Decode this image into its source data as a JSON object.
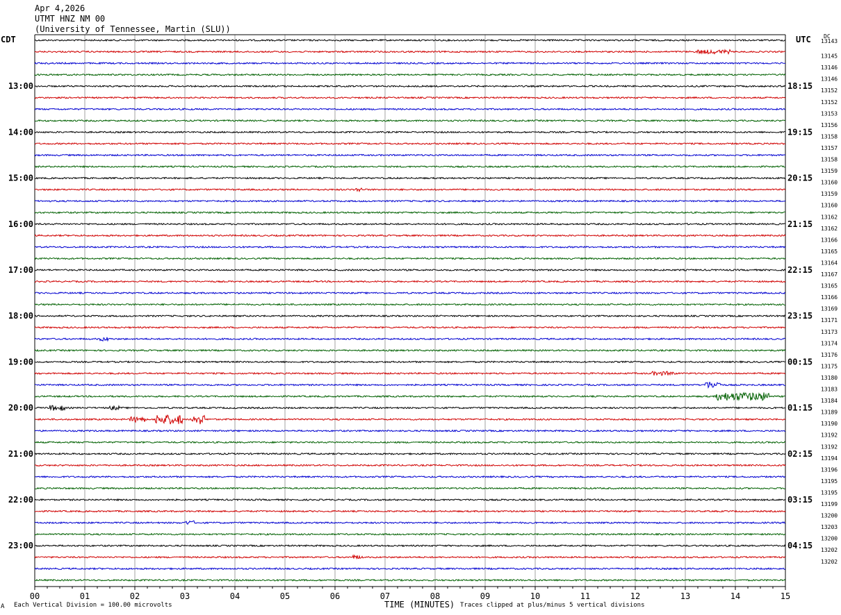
{
  "header": {
    "date": "Apr 4,2026",
    "station": "UTMT HNZ NM 00",
    "network": "(University of Tennessee, Martin (SLU))"
  },
  "left_tz": "CDT",
  "right_tz": "UTC",
  "dc_label": "DC",
  "footer": {
    "left": "Each Vertical Division =  100.00 microvolts",
    "mark": "A",
    "center": "TIME (MINUTES)",
    "right": "Traces clipped at plus/minus 5 vertical divisions"
  },
  "colors": {
    "trace_cycle": [
      "#000000",
      "#d00000",
      "#0000d0",
      "#006000"
    ],
    "grid": "#a0a0a0"
  },
  "chart_data": {
    "type": "line",
    "title": "",
    "xlabel": "TIME (MINUTES)",
    "xlim": [
      0,
      15
    ],
    "x_ticks": [
      "00",
      "01",
      "02",
      "03",
      "04",
      "05",
      "06",
      "07",
      "08",
      "09",
      "10",
      "11",
      "12",
      "13",
      "14",
      "15"
    ],
    "trace_count": 48,
    "left_hour_labels": [
      {
        "row": 4,
        "label": "13:00"
      },
      {
        "row": 8,
        "label": "14:00"
      },
      {
        "row": 12,
        "label": "15:00"
      },
      {
        "row": 16,
        "label": "16:00"
      },
      {
        "row": 20,
        "label": "17:00"
      },
      {
        "row": 24,
        "label": "18:00"
      },
      {
        "row": 28,
        "label": "19:00"
      },
      {
        "row": 32,
        "label": "20:00"
      },
      {
        "row": 36,
        "label": "21:00"
      },
      {
        "row": 40,
        "label": "22:00"
      },
      {
        "row": 44,
        "label": "23:00"
      }
    ],
    "right_hour_labels": [
      {
        "row": 4,
        "label": "18:15"
      },
      {
        "row": 8,
        "label": "19:15"
      },
      {
        "row": 12,
        "label": "20:15"
      },
      {
        "row": 16,
        "label": "21:15"
      },
      {
        "row": 20,
        "label": "22:15"
      },
      {
        "row": 24,
        "label": "23:15"
      },
      {
        "row": 28,
        "label": "00:15"
      },
      {
        "row": 32,
        "label": "01:15"
      },
      {
        "row": 36,
        "label": "02:15"
      },
      {
        "row": 40,
        "label": "03:15"
      },
      {
        "row": 44,
        "label": "04:15"
      }
    ],
    "dc_offsets": [
      "13143",
      "13145",
      "13146",
      "13146",
      "13152",
      "13152",
      "13153",
      "13156",
      "13158",
      "13157",
      "13158",
      "13159",
      "13160",
      "13159",
      "13160",
      "13162",
      "13162",
      "13166",
      "13165",
      "13164",
      "13167",
      "13165",
      "13166",
      "13169",
      "13171",
      "13173",
      "13174",
      "13176",
      "13175",
      "13180",
      "13183",
      "13184",
      "13189",
      "13190",
      "13192",
      "13192",
      "13194",
      "13196",
      "13195",
      "13195",
      "13199",
      "13200",
      "13203",
      "13200",
      "13202",
      "13202"
    ],
    "events": [
      {
        "row": 1,
        "start_min": 13.2,
        "end_min": 13.9,
        "amp": 3
      },
      {
        "row": 29,
        "start_min": 12.3,
        "end_min": 12.8,
        "amp": 3
      },
      {
        "row": 30,
        "start_min": 13.4,
        "end_min": 13.7,
        "amp": 5
      },
      {
        "row": 31,
        "start_min": 13.6,
        "end_min": 14.7,
        "amp": 6
      },
      {
        "row": 32,
        "start_min": 0.3,
        "end_min": 0.6,
        "amp": 4
      },
      {
        "row": 32,
        "start_min": 1.5,
        "end_min": 1.7,
        "amp": 3
      },
      {
        "row": 33,
        "start_min": 1.9,
        "end_min": 2.2,
        "amp": 4
      },
      {
        "row": 33,
        "start_min": 2.4,
        "end_min": 2.95,
        "amp": 7
      },
      {
        "row": 33,
        "start_min": 3.15,
        "end_min": 3.4,
        "amp": 7
      },
      {
        "row": 13,
        "start_min": 6.4,
        "end_min": 6.55,
        "amp": 3
      },
      {
        "row": 26,
        "start_min": 1.3,
        "end_min": 1.5,
        "amp": 3
      },
      {
        "row": 42,
        "start_min": 3.0,
        "end_min": 3.2,
        "amp": 3
      },
      {
        "row": 45,
        "start_min": 6.35,
        "end_min": 6.55,
        "amp": 3
      }
    ]
  }
}
